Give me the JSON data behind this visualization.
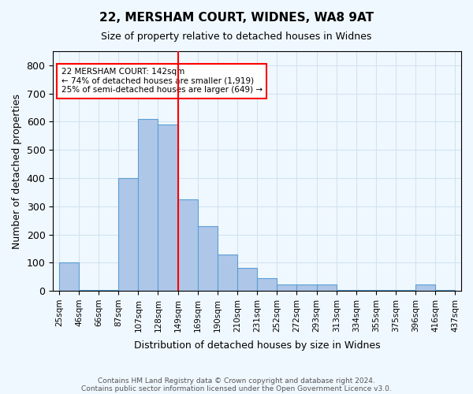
{
  "title1": "22, MERSHAM COURT, WIDNES, WA8 9AT",
  "title2": "Size of property relative to detached houses in Widnes",
  "xlabel": "Distribution of detached houses by size in Widnes",
  "ylabel": "Number of detached properties",
  "footer1": "Contains HM Land Registry data © Crown copyright and database right 2024.",
  "footer2": "Contains public sector information licensed under the Open Government Licence v3.0.",
  "bin_labels": [
    "25sqm",
    "46sqm",
    "66sqm",
    "87sqm",
    "107sqm",
    "128sqm",
    "149sqm",
    "169sqm",
    "190sqm",
    "210sqm",
    "231sqm",
    "252sqm",
    "272sqm",
    "293sqm",
    "313sqm",
    "334sqm",
    "355sqm",
    "375sqm",
    "396sqm",
    "416sqm",
    "437sqm"
  ],
  "bar_heights": [
    100,
    2,
    2,
    400,
    610,
    590,
    325,
    230,
    130,
    80,
    45,
    22,
    22,
    22,
    2,
    2,
    2,
    2,
    22,
    2
  ],
  "bar_color": "#aec6e8",
  "bar_edge_color": "#5a9fd4",
  "grid_color": "#d0e4f0",
  "ref_line_color": "red",
  "annotation_text": "22 MERSHAM COURT: 142sqm\n← 74% of detached houses are smaller (1,919)\n25% of semi-detached houses are larger (649) →",
  "annotation_box_color": "white",
  "annotation_box_edge_color": "red",
  "ylim": [
    0,
    850
  ],
  "yticks": [
    0,
    100,
    200,
    300,
    400,
    500,
    600,
    700,
    800
  ],
  "background_color": "#f0f8ff"
}
